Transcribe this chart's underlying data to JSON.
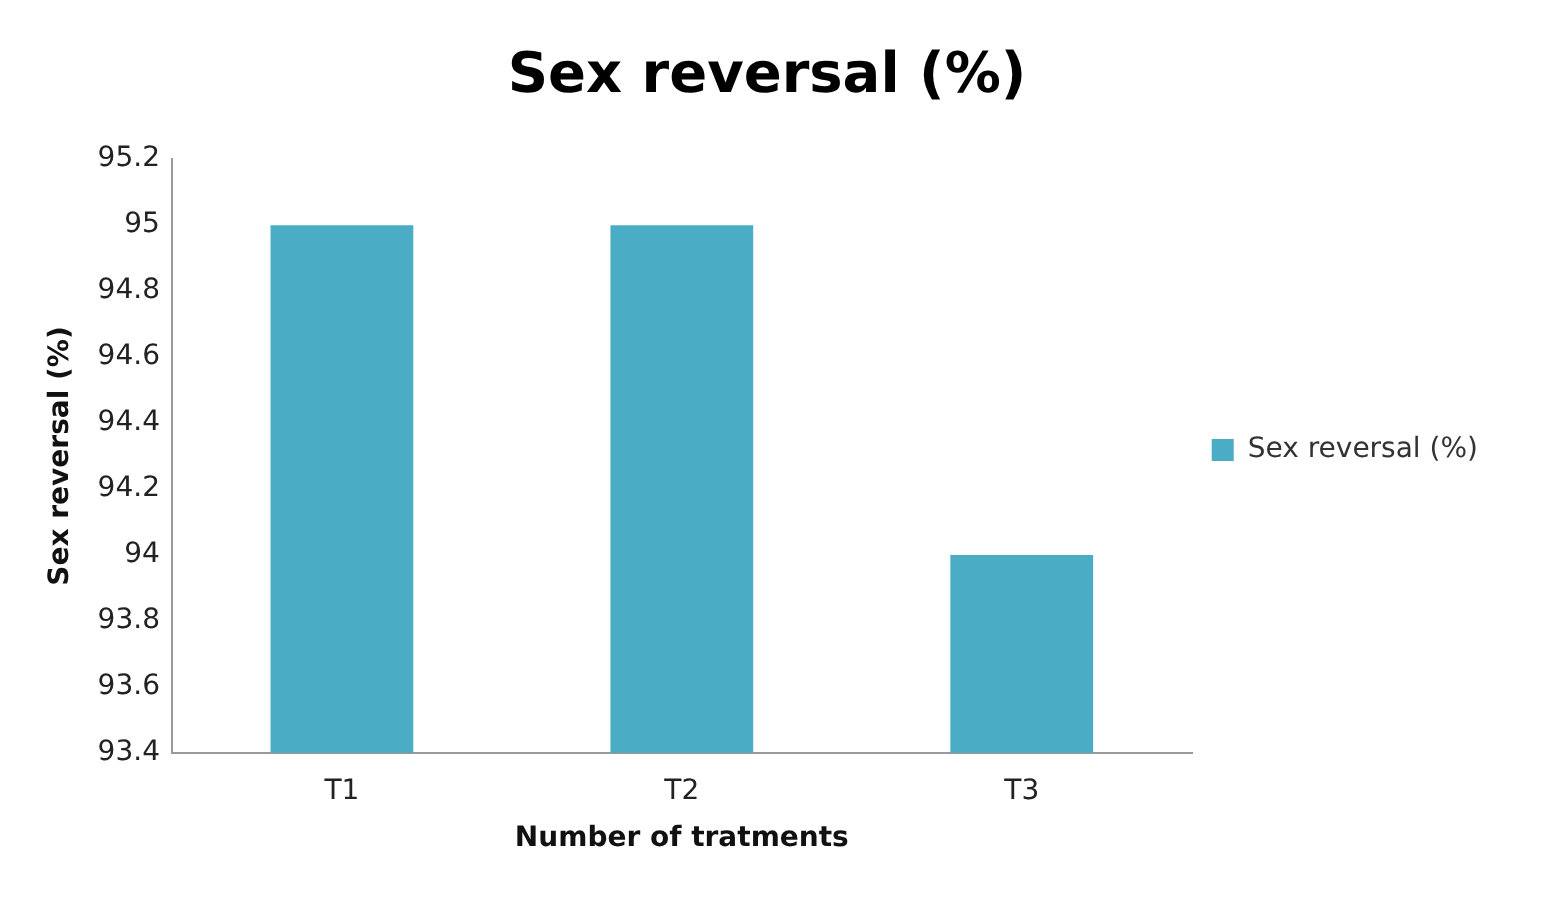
{
  "chart_data": {
    "type": "bar",
    "title": "Sex reversal (%)",
    "xlabel": "Number of tratments",
    "ylabel": "Sex reversal (%)",
    "categories": [
      "T1",
      "T2",
      "T3"
    ],
    "series": [
      {
        "name": "Sex reversal (%)",
        "color": "#4bacc6",
        "values": [
          95,
          95,
          94
        ]
      }
    ],
    "ylim": [
      93.4,
      95.2
    ],
    "yticks": [
      93.4,
      93.6,
      93.8,
      94,
      94.2,
      94.4,
      94.6,
      94.8,
      95,
      95.2
    ],
    "grid": false,
    "legend": "right"
  }
}
